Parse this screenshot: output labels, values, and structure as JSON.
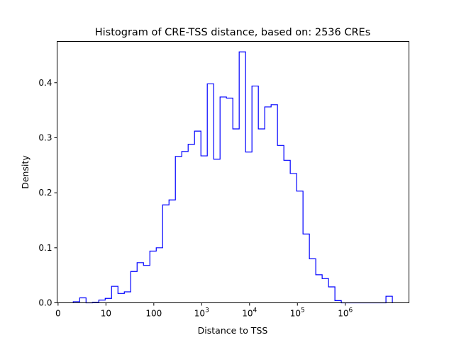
{
  "chart_data": {
    "type": "histogram",
    "title": "Histogram of CRE-TSS distance, based on: 2536 CREs",
    "xlabel": "Distance to TSS",
    "ylabel": "Density",
    "x_scale": "log10",
    "xlim_log10": [
      -0.02,
      7.33
    ],
    "ylim": [
      0,
      0.475
    ],
    "bin_start_log10": 0.318,
    "bin_width_log10": 0.1333,
    "densities": [
      0.002,
      0.009,
      0.0,
      0.001,
      0.005,
      0.008,
      0.03,
      0.017,
      0.02,
      0.057,
      0.073,
      0.068,
      0.094,
      0.1,
      0.178,
      0.187,
      0.266,
      0.275,
      0.288,
      0.312,
      0.267,
      0.398,
      0.261,
      0.374,
      0.372,
      0.316,
      0.456,
      0.274,
      0.394,
      0.316,
      0.356,
      0.36,
      0.286,
      0.259,
      0.235,
      0.203,
      0.125,
      0.08,
      0.051,
      0.044,
      0.029,
      0.004,
      0,
      0,
      0,
      0,
      0,
      0,
      0,
      0.012
    ],
    "x_ticks": [
      {
        "value": 0,
        "label": "0",
        "sup": ""
      },
      {
        "value": 1,
        "label": "10",
        "sup": ""
      },
      {
        "value": 2,
        "label": "100",
        "sup": ""
      },
      {
        "value": 3,
        "label": "10",
        "sup": "3"
      },
      {
        "value": 4,
        "label": "10",
        "sup": "4"
      },
      {
        "value": 5,
        "label": "10",
        "sup": "5"
      },
      {
        "value": 6,
        "label": "10",
        "sup": "6"
      }
    ],
    "y_ticks": [
      {
        "value": 0,
        "label": "0.0"
      },
      {
        "value": 0.1,
        "label": "0.1"
      },
      {
        "value": 0.2,
        "label": "0.2"
      },
      {
        "value": 0.3,
        "label": "0.3"
      },
      {
        "value": 0.4,
        "label": "0.4"
      }
    ],
    "line_color": "#0000ff",
    "grid": false,
    "legend": "none"
  }
}
